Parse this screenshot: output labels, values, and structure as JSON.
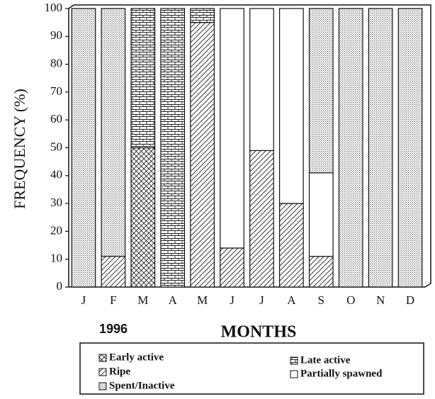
{
  "chart_data": {
    "type": "stacked_bar",
    "annotation": "1996",
    "x_label": "MONTHS",
    "y_label": "FREQUENCY (%)",
    "categories": [
      "J",
      "F",
      "M",
      "A",
      "M",
      "J",
      "J",
      "A",
      "S",
      "O",
      "N",
      "D"
    ],
    "series": [
      {
        "name": "Early active",
        "color": "#222222",
        "pattern": "crosshatch",
        "values": [
          0,
          0,
          50,
          0,
          0,
          0,
          0,
          0,
          0,
          0,
          0,
          0
        ]
      },
      {
        "name": "Ripe",
        "color": "#222222",
        "pattern": "diagonal",
        "values": [
          0,
          11,
          0,
          0,
          95,
          14,
          49,
          30,
          11,
          0,
          0,
          0
        ]
      },
      {
        "name": "Late active",
        "color": "#222222",
        "pattern": "brick",
        "values": [
          0,
          0,
          50,
          100,
          5,
          0,
          0,
          0,
          0,
          0,
          0,
          0
        ]
      },
      {
        "name": "Partially spawned",
        "color": "#ffffff",
        "pattern": "none",
        "values": [
          0,
          0,
          0,
          0,
          0,
          86,
          51,
          70,
          30,
          0,
          0,
          0
        ]
      },
      {
        "name": "Spent/Inactive",
        "color": "#555555",
        "pattern": "dots",
        "values": [
          100,
          89,
          0,
          0,
          0,
          0,
          0,
          0,
          59,
          100,
          100,
          100
        ]
      }
    ],
    "ylim": [
      0,
      100
    ],
    "yticks": [
      0,
      10,
      20,
      30,
      40,
      50,
      60,
      70,
      80,
      90,
      100
    ],
    "grid": false
  }
}
